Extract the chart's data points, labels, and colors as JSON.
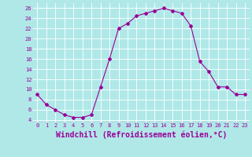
{
  "x": [
    0,
    1,
    2,
    3,
    4,
    5,
    6,
    7,
    8,
    9,
    10,
    11,
    12,
    13,
    14,
    15,
    16,
    17,
    18,
    19,
    20,
    21,
    22,
    23
  ],
  "y": [
    9,
    7,
    6,
    5,
    4.5,
    4.5,
    5,
    10.5,
    16,
    22,
    23,
    24.5,
    25,
    25.5,
    26,
    25.5,
    25,
    22.5,
    15.5,
    13.5,
    10.5,
    10.5,
    9,
    9
  ],
  "line_color": "#990099",
  "marker": "D",
  "marker_size": 2,
  "bg_color": "#b0e8e8",
  "grid_color": "#ffffff",
  "xlabel": "Windchill (Refroidissement éolien,°C)",
  "xlabel_color": "#990099",
  "xlabel_fontsize": 7,
  "yticks": [
    4,
    6,
    8,
    10,
    12,
    14,
    16,
    18,
    20,
    22,
    24,
    26
  ],
  "xticks": [
    0,
    1,
    2,
    3,
    4,
    5,
    6,
    7,
    8,
    9,
    10,
    11,
    12,
    13,
    14,
    15,
    16,
    17,
    18,
    19,
    20,
    21,
    22,
    23
  ],
  "xlim": [
    -0.5,
    23.5
  ],
  "ylim": [
    3.5,
    27
  ]
}
